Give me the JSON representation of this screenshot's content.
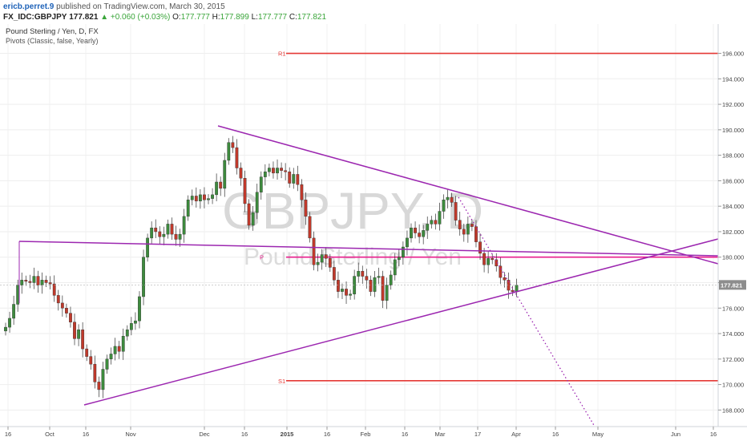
{
  "header": {
    "author": "ericb.perret.9",
    "published_text": "published on TradingView.com, March 30, 2015",
    "symbol": "FX_IDC:GBPJPY",
    "last": "177.821",
    "change_arrow": "▲",
    "change": "+0.060 (+0.03%)",
    "open_label": "O:",
    "open": "177.777",
    "high_label": "H:",
    "high": "177.899",
    "low_label": "L:",
    "low": "177.777",
    "close_label": "C:",
    "close": "177.821"
  },
  "legend": {
    "title": "Pound Sterling / Yen, D, FX",
    "indicator": "Pivots (Classic, false, Yearly)"
  },
  "watermark": {
    "symbol": "GBPJPY, D",
    "name": "Pound Sterling / Yen"
  },
  "pivots": {
    "r1_label": "R1",
    "r1_value": 196.0,
    "p_label": "P",
    "p_value": 180.0,
    "s1_label": "S1",
    "s1_value": 170.3
  },
  "colors": {
    "up_candle": "#3d8b3d",
    "down_candle": "#c0392b",
    "pivot_line": "#e53935",
    "trendline": "#9c27b0",
    "price_tag": "#8d8d8d"
  },
  "price_tag": "177.821",
  "chart_data": {
    "type": "candlestick",
    "symbol": "FX_IDC:GBPJPY",
    "timeframe": "D",
    "y_ticks": [
      "168.000",
      "170.000",
      "172.000",
      "174.000",
      "176.000",
      "178.000",
      "180.000",
      "182.000",
      "184.000",
      "186.000",
      "188.000",
      "190.000",
      "192.000",
      "194.000",
      "196.000"
    ],
    "x_ticks": [
      "16",
      "Oct",
      "16",
      "Nov",
      "Dec",
      "16",
      "2015",
      "16",
      "Feb",
      "16",
      "Mar",
      "17",
      "Apr",
      "16",
      "May",
      "Jun",
      "16"
    ],
    "ylim": [
      166.7,
      198.3
    ],
    "close_series": [
      174.5,
      175.2,
      176.3,
      177.8,
      178.2,
      178.1,
      178.0,
      178.5,
      177.8,
      178.2,
      178.0,
      177.9,
      177.0,
      176.4,
      176.0,
      175.6,
      174.9,
      173.6,
      174.3,
      172.8,
      172.2,
      171.6,
      170.2,
      169.6,
      171.2,
      172.0,
      172.4,
      173.0,
      172.6,
      173.8,
      174.3,
      174.8,
      175.0,
      176.9,
      180.0,
      181.5,
      182.3,
      182.0,
      181.6,
      181.8,
      182.6,
      181.8,
      181.4,
      181.8,
      183.2,
      184.5,
      184.8,
      184.4,
      184.9,
      184.5,
      184.6,
      184.9,
      185.9,
      185.4,
      187.6,
      189.0,
      188.6,
      187.0,
      186.2,
      184.2,
      182.5,
      183.5,
      185.1,
      186.3,
      186.7,
      187.0,
      186.6,
      187.0,
      186.8,
      186.7,
      185.8,
      186.5,
      185.7,
      184.5,
      183.2,
      181.5,
      179.4,
      179.6,
      180.2,
      179.9,
      179.2,
      178.2,
      177.3,
      177.5,
      177.0,
      177.1,
      178.5,
      178.9,
      178.5,
      178.2,
      177.3,
      178.4,
      178.5,
      176.6,
      177.8,
      178.6,
      179.8,
      180.0,
      180.8,
      181.5,
      182.3,
      181.9,
      181.6,
      182.1,
      182.6,
      182.9,
      182.6,
      183.6,
      184.5,
      184.7,
      184.3,
      182.9,
      182.2,
      181.8,
      182.6,
      182.4,
      181.2,
      180.3,
      179.4,
      179.9,
      179.8,
      179.3,
      178.4,
      178.2,
      177.4,
      177.3,
      177.8
    ]
  }
}
